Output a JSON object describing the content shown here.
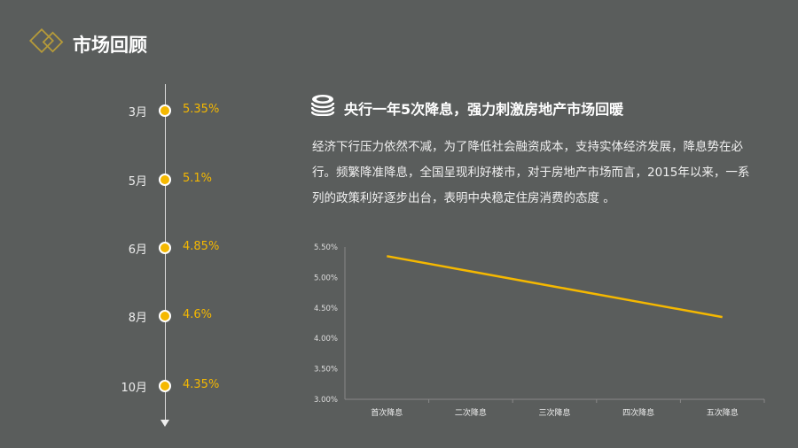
{
  "header": {
    "title": "市场回顾",
    "logo_icon": "double-diamond-icon",
    "accent": "#b59a3a"
  },
  "timeline": [
    {
      "month": "3月",
      "rate": "5.35%"
    },
    {
      "month": "5月",
      "rate": "5.1%"
    },
    {
      "month": "6月",
      "rate": "4.85%"
    },
    {
      "month": "8月",
      "rate": "4.6%"
    },
    {
      "month": "10月",
      "rate": "4.35%"
    }
  ],
  "section": {
    "icon": "coins-icon",
    "title": "央行一年5次降息，强力刺激房地产市场回暖",
    "body": "经济下行压力依然不减，为了降低社会融资成本，支持实体经济发展，降息势在必行。频繁降准降息，全国呈现利好楼市，对于房地产市场而言，2015年以来，一系列的政策利好逐步出台，表明中央稳定住房消费的态度 。"
  },
  "chart_data": {
    "type": "line",
    "categories": [
      "首次降息",
      "二次降息",
      "三次降息",
      "四次降息",
      "五次降息"
    ],
    "values": [
      5.35,
      5.1,
      4.85,
      4.6,
      4.35
    ],
    "ylim": [
      3.0,
      5.5
    ],
    "yticks": [
      "3.00%",
      "3.50%",
      "4.00%",
      "4.50%",
      "5.00%",
      "5.50%"
    ],
    "grid": false,
    "color": "#f5b800"
  }
}
